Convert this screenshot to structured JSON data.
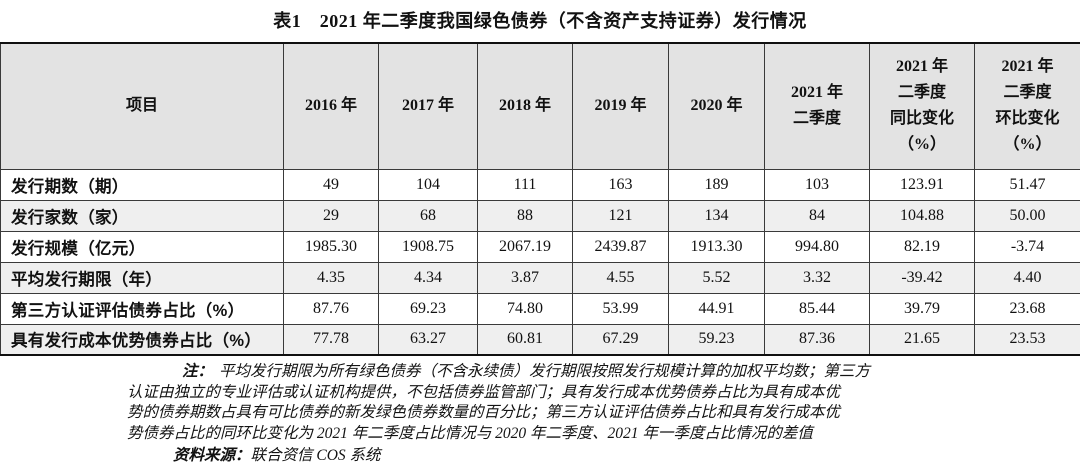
{
  "title": "表1　2021 年二季度我国绿色债券（不含资产支持证券）发行情况",
  "table": {
    "header": [
      "项目",
      "2016 年",
      "2017 年",
      "2018 年",
      "2019 年",
      "2020 年",
      "2021 年\n二季度",
      "2021 年\n二季度\n同比变化\n（%）",
      "2021 年\n二季度\n环比变化\n（%）"
    ],
    "rows": [
      {
        "label": "发行期数（期）",
        "values": [
          "49",
          "104",
          "111",
          "163",
          "189",
          "103",
          "123.91",
          "51.47"
        ]
      },
      {
        "label": "发行家数（家）",
        "values": [
          "29",
          "68",
          "88",
          "121",
          "134",
          "84",
          "104.88",
          "50.00"
        ]
      },
      {
        "label": "发行规模（亿元）",
        "values": [
          "1985.30",
          "1908.75",
          "2067.19",
          "2439.87",
          "1913.30",
          "994.80",
          "82.19",
          "-3.74"
        ]
      },
      {
        "label": "平均发行期限（年）",
        "values": [
          "4.35",
          "4.34",
          "3.87",
          "4.55",
          "5.52",
          "3.32",
          "-39.42",
          "4.40"
        ]
      },
      {
        "label": "第三方认证评估债券占比（%）",
        "values": [
          "87.76",
          "69.23",
          "74.80",
          "53.99",
          "44.91",
          "85.44",
          "39.79",
          "23.68"
        ]
      },
      {
        "label": "具有发行成本优势债券占比（%）",
        "values": [
          "77.78",
          "63.27",
          "60.81",
          "67.29",
          "59.23",
          "87.36",
          "21.65",
          "23.53"
        ]
      }
    ]
  },
  "notes": {
    "label": "注：",
    "lines": [
      "平均发行期限为所有绿色债券（不含永续债）发行期限按照发行规模计算的加权平均数；第三方",
      "认证由独立的专业评估或认证机构提供，不包括债券监管部门；具有发行成本优势债券占比为具有成本优",
      "势的债券期数占具有可比债券的新发绿色债券数量的百分比；第三方认证评估债券占比和具有发行成本优",
      "势债券占比的同环比变化为 2021 年二季度占比情况与 2020 年二季度、2021 年一季度占比情况的差值"
    ]
  },
  "source": {
    "label": "资料来源：",
    "text": "联合资信 COS 系统"
  },
  "colors": {
    "header_bg": "#e3e3e3",
    "stripe_bg": "#efefef",
    "border": "#3a3a3a",
    "outer_border": "#101010"
  }
}
